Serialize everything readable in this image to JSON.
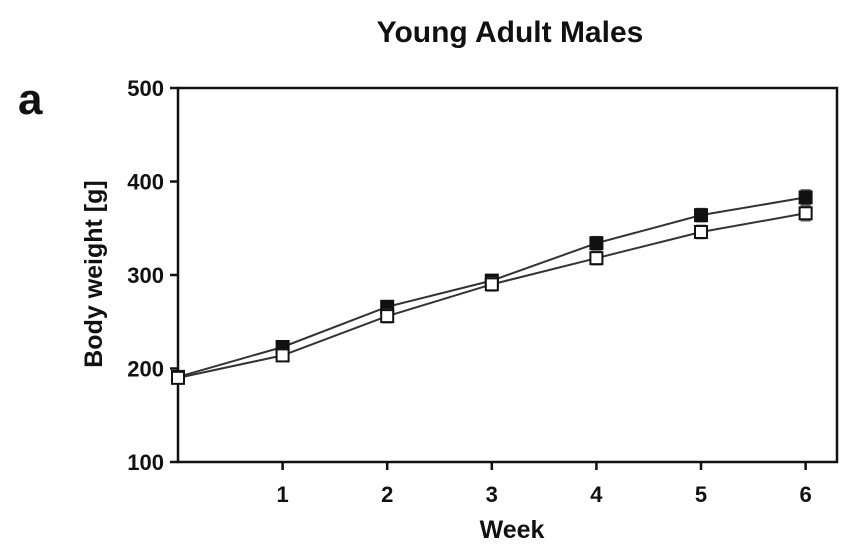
{
  "chart_data": {
    "type": "line",
    "title": "Young Adult Males",
    "panel_label": "a",
    "xlabel": "Week",
    "ylabel": "Body weight [g]",
    "xlim": [
      0,
      6.3
    ],
    "ylim": [
      100,
      500
    ],
    "x_ticks": [
      1,
      2,
      3,
      4,
      5,
      6
    ],
    "y_ticks": [
      100,
      200,
      300,
      400,
      500
    ],
    "x": [
      0,
      1,
      2,
      3,
      4,
      5,
      6
    ],
    "series": [
      {
        "marker": "filled-square",
        "color": "#111111",
        "values": [
          191,
          223,
          266,
          294,
          334,
          364,
          383
        ],
        "errors": [
          4,
          5,
          6,
          6,
          7,
          7,
          8
        ]
      },
      {
        "marker": "open-square",
        "color": "#111111",
        "values": [
          190,
          214,
          256,
          290,
          318,
          346,
          366
        ],
        "errors": [
          4,
          6,
          7,
          7,
          7,
          7,
          8
        ]
      }
    ],
    "grid": false,
    "legend": "none"
  }
}
